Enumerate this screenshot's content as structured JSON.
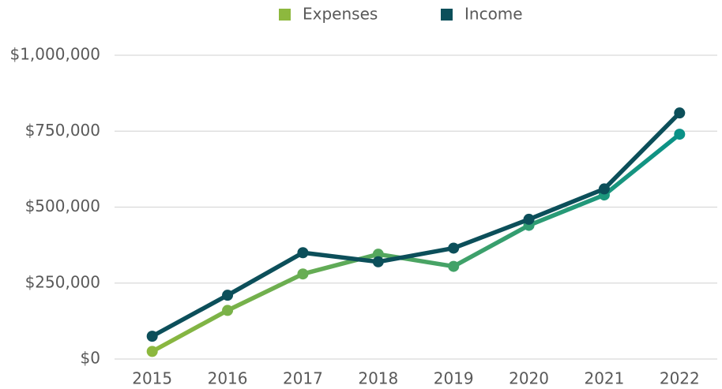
{
  "chart_data": {
    "type": "line",
    "categories": [
      "2015",
      "2016",
      "2017",
      "2018",
      "2019",
      "2020",
      "2021",
      "2022"
    ],
    "series": [
      {
        "name": "Expenses",
        "color": "#8db83e",
        "gradient_to": "#0a9187",
        "values": [
          25000,
          160000,
          280000,
          345000,
          305000,
          440000,
          540000,
          740000
        ]
      },
      {
        "name": "Income",
        "color": "#0c4f5a",
        "values": [
          75000,
          210000,
          350000,
          320000,
          365000,
          460000,
          560000,
          810000
        ]
      }
    ],
    "ylim": [
      0,
      1000000
    ],
    "yticks": [
      {
        "value": 0,
        "label": "$0"
      },
      {
        "value": 250000,
        "label": "$250,000"
      },
      {
        "value": 500000,
        "label": "$500,000"
      },
      {
        "value": 750000,
        "label": "$750,000"
      },
      {
        "value": 1000000,
        "label": "$1,000,000"
      }
    ],
    "grid": true,
    "legend": "top"
  }
}
